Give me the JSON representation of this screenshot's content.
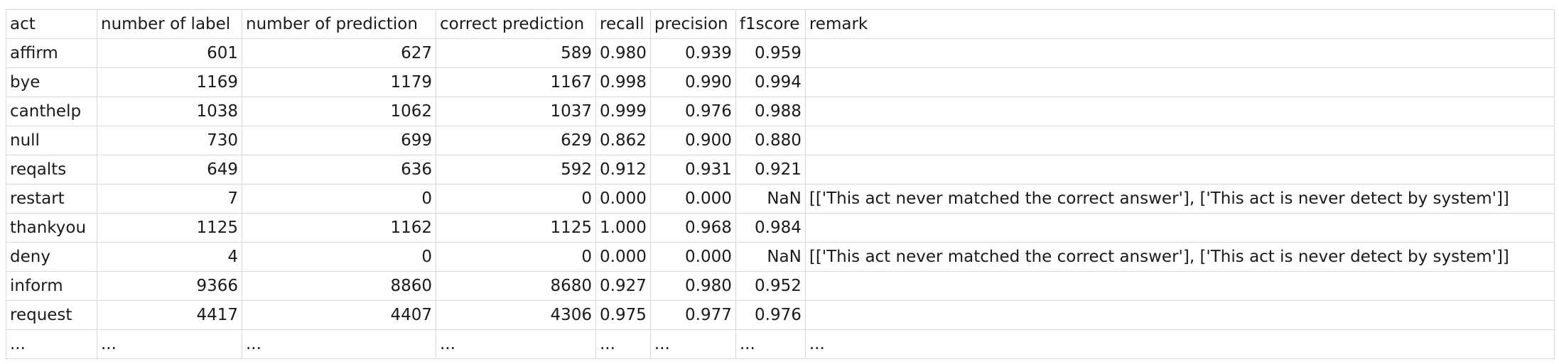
{
  "table": {
    "columns": [
      "act",
      "number of label",
      "number of prediction",
      "correct prediction",
      "recall",
      "precision",
      "f1score",
      "remark"
    ],
    "rows": [
      [
        "affirm",
        "601",
        "627",
        "589",
        "0.980",
        "0.939",
        "0.959",
        ""
      ],
      [
        "bye",
        "1169",
        "1179",
        "1167",
        "0.998",
        "0.990",
        "0.994",
        ""
      ],
      [
        "canthelp",
        "1038",
        "1062",
        "1037",
        "0.999",
        "0.976",
        "0.988",
        ""
      ],
      [
        "null",
        "730",
        "699",
        "629",
        "0.862",
        "0.900",
        "0.880",
        ""
      ],
      [
        "reqalts",
        "649",
        "636",
        "592",
        "0.912",
        "0.931",
        "0.921",
        ""
      ],
      [
        "restart",
        "7",
        "0",
        "0",
        "0.000",
        "0.000",
        "NaN",
        "[['This act never matched the correct answer'], ['This act is never detect by system']]"
      ],
      [
        "thankyou",
        "1125",
        "1162",
        "1125",
        "1.000",
        "0.968",
        "0.984",
        ""
      ],
      [
        "deny",
        "4",
        "0",
        "0",
        "0.000",
        "0.000",
        "NaN",
        "[['This act never matched the correct answer'], ['This act is never detect by system']]"
      ],
      [
        "inform",
        "9366",
        "8860",
        "8680",
        "0.927",
        "0.980",
        "0.952",
        ""
      ],
      [
        "request",
        "4417",
        "4407",
        "4306",
        "0.975",
        "0.977",
        "0.976",
        ""
      ],
      [
        "...",
        "...",
        "...",
        "...",
        "...",
        "...",
        "...",
        "..."
      ]
    ]
  }
}
